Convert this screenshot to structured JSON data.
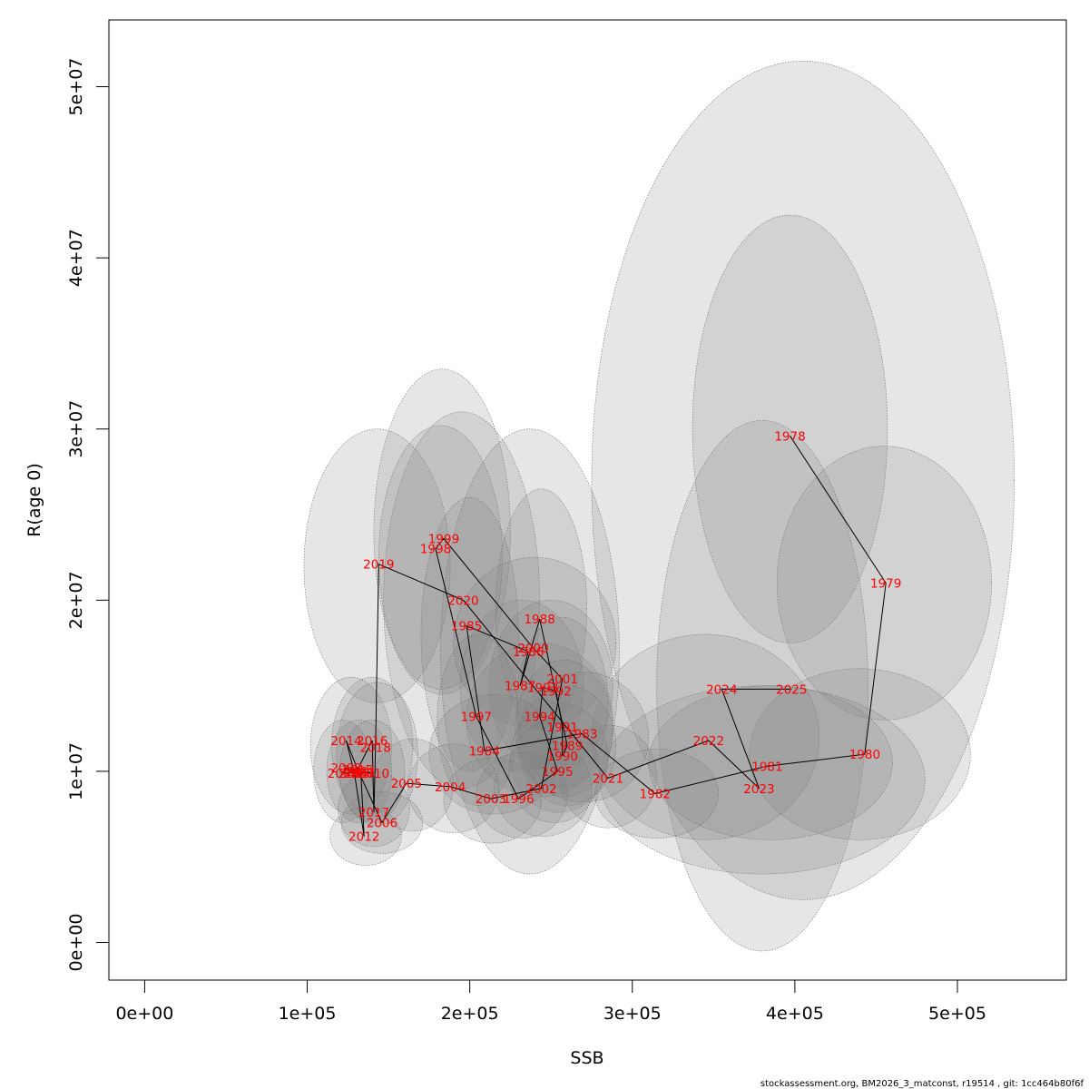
{
  "chart_data": {
    "type": "scatter",
    "xlabel": "SSB",
    "ylabel": "R(age 0)",
    "xlim": [
      -22000,
      567000
    ],
    "ylim": [
      -2200000,
      53900000
    ],
    "x_ticks": [
      {
        "value": 0,
        "label": "0e+00"
      },
      {
        "value": 100000,
        "label": "1e+05"
      },
      {
        "value": 200000,
        "label": "2e+05"
      },
      {
        "value": 300000,
        "label": "3e+05"
      },
      {
        "value": 400000,
        "label": "4e+05"
      },
      {
        "value": 500000,
        "label": "5e+05"
      }
    ],
    "y_ticks": [
      {
        "value": 0,
        "label": "0e+00"
      },
      {
        "value": 10000000,
        "label": "1e+07"
      },
      {
        "value": 20000000,
        "label": "2e+07"
      },
      {
        "value": 30000000,
        "label": "3e+07"
      },
      {
        "value": 40000000,
        "label": "4e+07"
      },
      {
        "value": 50000000,
        "label": "5e+07"
      }
    ],
    "points": [
      {
        "year": "1978",
        "ssb": 397000,
        "r": 29600000
      },
      {
        "year": "1979",
        "ssb": 456000,
        "r": 21000000
      },
      {
        "year": "1980",
        "ssb": 443000,
        "r": 11000000
      },
      {
        "year": "1981",
        "ssb": 383000,
        "r": 10300000
      },
      {
        "year": "1982",
        "ssb": 314000,
        "r": 8700000
      },
      {
        "year": "1983",
        "ssb": 269000,
        "r": 12200000
      },
      {
        "year": "1984",
        "ssb": 209000,
        "r": 11200000
      },
      {
        "year": "1985",
        "ssb": 198000,
        "r": 18500000
      },
      {
        "year": "1986",
        "ssb": 236000,
        "r": 17000000
      },
      {
        "year": "1987",
        "ssb": 231000,
        "r": 15000000
      },
      {
        "year": "1988",
        "ssb": 243000,
        "r": 18900000
      },
      {
        "year": "1989",
        "ssb": 260000,
        "r": 11500000
      },
      {
        "year": "1990",
        "ssb": 257000,
        "r": 10900000
      },
      {
        "year": "1991",
        "ssb": 257000,
        "r": 12600000
      },
      {
        "year": "1992",
        "ssb": 253000,
        "r": 14700000
      },
      {
        "year": "1993",
        "ssb": 245000,
        "r": 14900000
      },
      {
        "year": "1994",
        "ssb": 243000,
        "r": 13200000
      },
      {
        "year": "1995",
        "ssb": 254000,
        "r": 10000000
      },
      {
        "year": "1996",
        "ssb": 230000,
        "r": 8400000
      },
      {
        "year": "1997",
        "ssb": 204000,
        "r": 13200000
      },
      {
        "year": "1998",
        "ssb": 179000,
        "r": 23000000
      },
      {
        "year": "1999",
        "ssb": 184000,
        "r": 23600000
      },
      {
        "year": "2000",
        "ssb": 239000,
        "r": 17200000
      },
      {
        "year": "2001",
        "ssb": 257000,
        "r": 15400000
      },
      {
        "year": "2002",
        "ssb": 244000,
        "r": 9000000
      },
      {
        "year": "2003",
        "ssb": 213000,
        "r": 8400000
      },
      {
        "year": "2004",
        "ssb": 188000,
        "r": 9100000
      },
      {
        "year": "2005",
        "ssb": 161000,
        "r": 9300000
      },
      {
        "year": "2006",
        "ssb": 146000,
        "r": 7000000
      },
      {
        "year": "2007",
        "ssb": 132000,
        "r": 9900000
      },
      {
        "year": "2008",
        "ssb": 124000,
        "r": 10200000
      },
      {
        "year": "2009",
        "ssb": 122000,
        "r": 9900000
      },
      {
        "year": "2010",
        "ssb": 141000,
        "r": 9900000
      },
      {
        "year": "2011",
        "ssb": 133000,
        "r": 10000000
      },
      {
        "year": "2012",
        "ssb": 135000,
        "r": 6200000
      },
      {
        "year": "2013",
        "ssb": 129000,
        "r": 9900000
      },
      {
        "year": "2014",
        "ssb": 124000,
        "r": 11800000
      },
      {
        "year": "2015",
        "ssb": 131000,
        "r": 10100000
      },
      {
        "year": "2016",
        "ssb": 140000,
        "r": 11800000
      },
      {
        "year": "2017",
        "ssb": 141000,
        "r": 7600000
      },
      {
        "year": "2018",
        "ssb": 142000,
        "r": 11400000
      },
      {
        "year": "2019",
        "ssb": 144000,
        "r": 22100000
      },
      {
        "year": "2020",
        "ssb": 196000,
        "r": 20000000
      },
      {
        "year": "2021",
        "ssb": 285000,
        "r": 9600000
      },
      {
        "year": "2022",
        "ssb": 347000,
        "r": 11800000
      },
      {
        "year": "2023",
        "ssb": 378000,
        "r": 9000000
      },
      {
        "year": "2024",
        "ssb": 355000,
        "r": 14800000
      },
      {
        "year": "2025",
        "ssb": 398000,
        "r": 14800000
      }
    ],
    "confidence_ellipses": [
      {
        "year": "2025",
        "cx": 405000,
        "cy": 27000000,
        "rx": 130000,
        "ry": 24500000
      },
      {
        "year": "1978",
        "cx": 397000,
        "cy": 30000000,
        "rx": 60000,
        "ry": 12500000
      },
      {
        "year": "1979",
        "cx": 455000,
        "cy": 21000000,
        "rx": 66000,
        "ry": 8000000
      },
      {
        "year": "2024",
        "cx": 380000,
        "cy": 15000000,
        "rx": 65000,
        "ry": 15500000
      },
      {
        "year": "1980",
        "cx": 440000,
        "cy": 11000000,
        "rx": 68000,
        "ry": 5000000
      },
      {
        "year": "1981",
        "cx": 385000,
        "cy": 10500000,
        "rx": 75000,
        "ry": 4500000
      },
      {
        "year": "2023",
        "cx": 380000,
        "cy": 9500000,
        "rx": 100000,
        "ry": 5500000
      },
      {
        "year": "2022",
        "cx": 345000,
        "cy": 12000000,
        "rx": 70000,
        "ry": 6000000
      },
      {
        "year": "1982",
        "cx": 315000,
        "cy": 8700000,
        "rx": 38000,
        "ry": 2600000
      },
      {
        "year": "2021",
        "cx": 285000,
        "cy": 9700000,
        "rx": 30000,
        "ry": 3000000
      },
      {
        "year": "2020",
        "cx": 195000,
        "cy": 20000000,
        "rx": 48000,
        "ry": 11000000
      },
      {
        "year": "1999",
        "cx": 183000,
        "cy": 24000000,
        "rx": 42000,
        "ry": 9500000
      },
      {
        "year": "1998",
        "cx": 182000,
        "cy": 22500000,
        "rx": 38000,
        "ry": 7700000
      },
      {
        "year": "2019",
        "cx": 143000,
        "cy": 22000000,
        "rx": 45000,
        "ry": 8000000
      },
      {
        "year": "1985",
        "cx": 200000,
        "cy": 18000000,
        "rx": 30000,
        "ry": 8000000
      },
      {
        "year": "1988",
        "cx": 244000,
        "cy": 19500000,
        "rx": 28000,
        "ry": 7000000
      },
      {
        "year": "1986",
        "cx": 237000,
        "cy": 17000000,
        "rx": 55000,
        "ry": 13000000
      },
      {
        "year": "2000",
        "cx": 240000,
        "cy": 17500000,
        "rx": 50000,
        "ry": 5000000
      },
      {
        "year": "1992",
        "cx": 250000,
        "cy": 15000000,
        "rx": 38000,
        "ry": 5000000
      },
      {
        "year": "1987",
        "cx": 232000,
        "cy": 15000000,
        "rx": 38000,
        "ry": 5000000
      },
      {
        "year": "1993",
        "cx": 257000,
        "cy": 14000000,
        "rx": 28000,
        "ry": 5000000
      },
      {
        "year": "1997",
        "cx": 205000,
        "cy": 13000000,
        "rx": 25000,
        "ry": 5000000
      },
      {
        "year": "1994",
        "cx": 243000,
        "cy": 13000000,
        "rx": 45000,
        "ry": 4500000
      },
      {
        "year": "1991",
        "cx": 258000,
        "cy": 12500000,
        "rx": 30000,
        "ry": 4000000
      },
      {
        "year": "1983",
        "cx": 270000,
        "cy": 12000000,
        "rx": 40000,
        "ry": 3800000
      },
      {
        "year": "1984",
        "cx": 215000,
        "cy": 11000000,
        "rx": 40000,
        "ry": 3500000
      },
      {
        "year": "1989",
        "cx": 260000,
        "cy": 11500000,
        "rx": 30000,
        "ry": 3500000
      },
      {
        "year": "1990",
        "cx": 255000,
        "cy": 10800000,
        "rx": 30000,
        "ry": 3200000
      },
      {
        "year": "1995",
        "cx": 252000,
        "cy": 10000000,
        "rx": 28000,
        "ry": 3000000
      },
      {
        "year": "2002",
        "cx": 245000,
        "cy": 9000000,
        "rx": 30000,
        "ry": 2800000
      },
      {
        "year": "1996",
        "cx": 232000,
        "cy": 8600000,
        "rx": 28000,
        "ry": 2500000
      },
      {
        "year": "2003",
        "cx": 214000,
        "cy": 8300000,
        "rx": 30000,
        "ry": 2500000
      },
      {
        "year": "2004",
        "cx": 190000,
        "cy": 9000000,
        "rx": 28000,
        "ry": 2600000
      },
      {
        "year": "2005",
        "cx": 165000,
        "cy": 9200000,
        "rx": 25000,
        "ry": 2700000
      },
      {
        "year": "2014",
        "cx": 127000,
        "cy": 11500000,
        "rx": 25000,
        "ry": 4000000
      },
      {
        "year": "2016",
        "cx": 140000,
        "cy": 11500000,
        "rx": 25000,
        "ry": 4000000
      },
      {
        "year": "2018",
        "cx": 143000,
        "cy": 11000000,
        "rx": 25000,
        "ry": 4200000
      },
      {
        "year": "2007",
        "cx": 132000,
        "cy": 10000000,
        "rx": 20000,
        "ry": 3000000
      },
      {
        "year": "2009",
        "cx": 122000,
        "cy": 10000000,
        "rx": 18000,
        "ry": 3000000
      },
      {
        "year": "2010",
        "cx": 140000,
        "cy": 10000000,
        "rx": 20000,
        "ry": 3000000
      },
      {
        "year": "2006",
        "cx": 146000,
        "cy": 7000000,
        "rx": 25000,
        "ry": 1800000
      },
      {
        "year": "2012",
        "cx": 136000,
        "cy": 6200000,
        "rx": 22000,
        "ry": 1700000
      },
      {
        "year": "2017",
        "cx": 141000,
        "cy": 7800000,
        "rx": 22000,
        "ry": 2200000
      }
    ]
  },
  "footer": "stockassessment.org, BM2026_3_matconst, r19514 , git: 1cc464b80f6f"
}
